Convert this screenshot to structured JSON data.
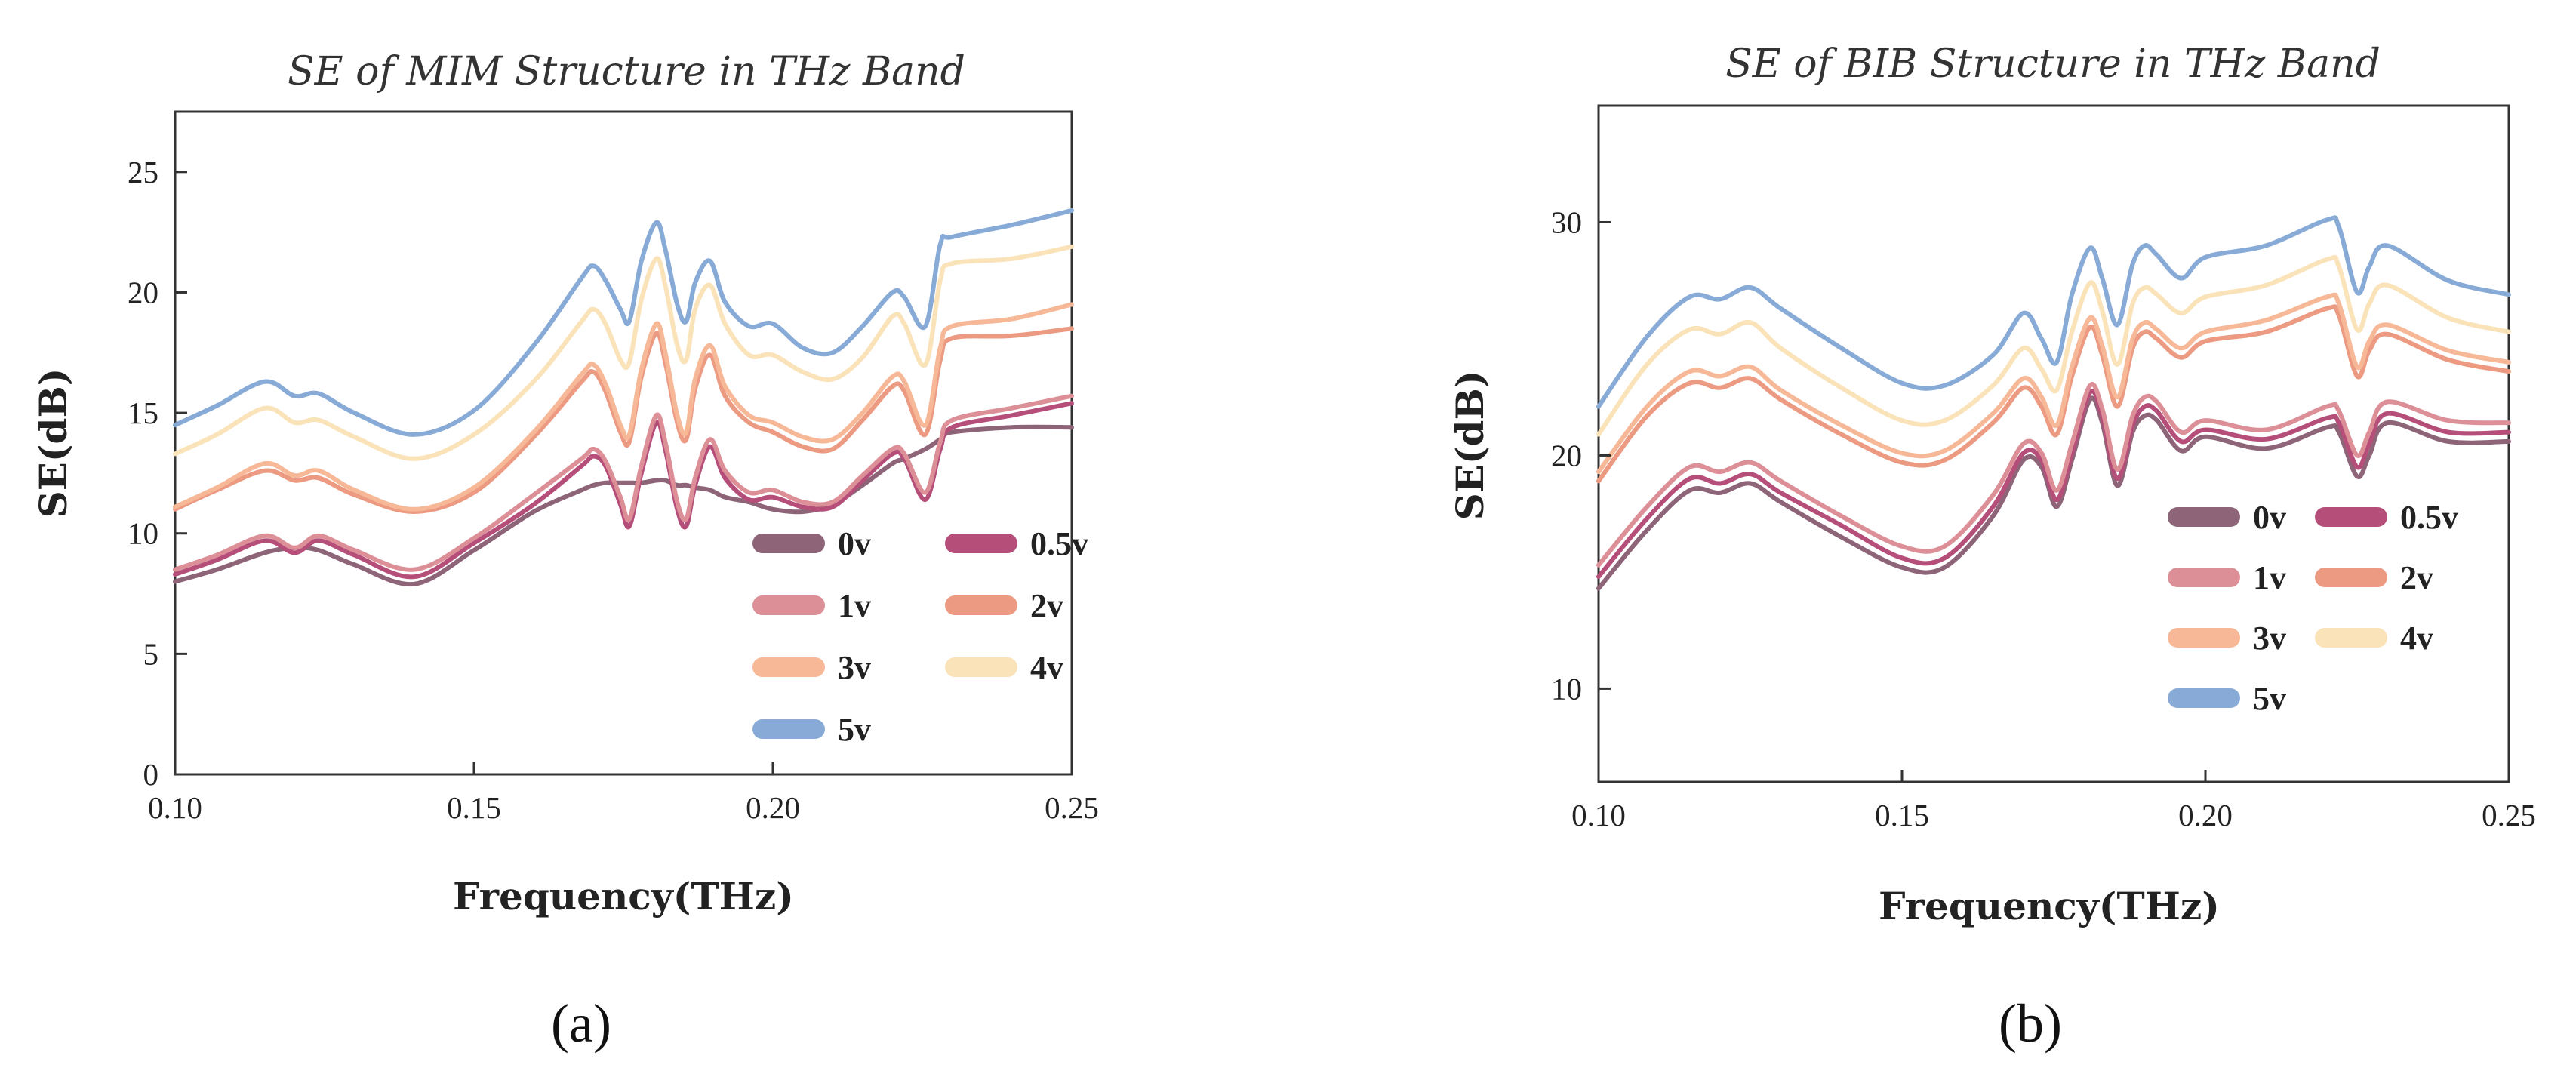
{
  "chart_data": [
    {
      "type": "line",
      "panel_label": "(a)",
      "title": "SE of MIM Structure in THz Band",
      "xlabel": "Frequency(THz)",
      "ylabel": "SE(dB)",
      "xlim": [
        0.1,
        0.25
      ],
      "ylim": [
        0,
        27.5
      ],
      "xticks": [
        0.1,
        0.15,
        0.2,
        0.25
      ],
      "xtick_labels": [
        "0.10",
        "0.15",
        "0.20",
        "0.25"
      ],
      "yticks": [
        0,
        5,
        10,
        15,
        20,
        25
      ],
      "ytick_labels": [
        "0",
        "5",
        "10",
        "15",
        "20",
        "25"
      ],
      "x": [
        0.1,
        0.107,
        0.115,
        0.12,
        0.124,
        0.13,
        0.14,
        0.15,
        0.16,
        0.168,
        0.17,
        0.172,
        0.1745,
        0.176,
        0.178,
        0.1805,
        0.182,
        0.184,
        0.1855,
        0.187,
        0.1895,
        0.192,
        0.196,
        0.2,
        0.205,
        0.21,
        0.215,
        0.22,
        0.222,
        0.2255,
        0.228,
        0.23,
        0.24,
        0.25
      ],
      "series": [
        {
          "name": "0v",
          "color": "#8e6478",
          "values": [
            8.0,
            8.5,
            9.2,
            9.4,
            9.3,
            8.7,
            7.9,
            9.3,
            10.9,
            11.8,
            12.0,
            12.1,
            12.1,
            12.1,
            12.1,
            12.2,
            12.2,
            12.0,
            12.0,
            11.9,
            11.8,
            11.5,
            11.3,
            11.0,
            10.9,
            11.2,
            12.0,
            12.9,
            13.1,
            13.5,
            13.9,
            14.2,
            14.4,
            14.4
          ]
        },
        {
          "name": "0.5v",
          "color": "#b64e7a",
          "values": [
            8.3,
            8.9,
            9.7,
            9.2,
            9.7,
            9.1,
            8.2,
            9.6,
            11.2,
            12.8,
            13.2,
            12.8,
            11.2,
            10.3,
            12.5,
            14.6,
            13.5,
            11.0,
            10.3,
            12.0,
            13.6,
            12.3,
            11.4,
            11.5,
            11.1,
            11.1,
            12.2,
            13.3,
            13.1,
            11.4,
            13.5,
            14.4,
            14.9,
            15.4
          ]
        },
        {
          "name": "1v",
          "color": "#dd8f98",
          "values": [
            8.5,
            9.1,
            9.9,
            9.4,
            9.9,
            9.3,
            8.5,
            9.8,
            11.6,
            13.1,
            13.5,
            13.0,
            11.5,
            10.6,
            12.8,
            14.9,
            13.8,
            11.3,
            10.6,
            12.3,
            13.9,
            12.6,
            11.7,
            11.8,
            11.3,
            11.3,
            12.4,
            13.5,
            13.3,
            11.7,
            13.8,
            14.7,
            15.2,
            15.7
          ]
        },
        {
          "name": "2v",
          "color": "#ec9a82",
          "values": [
            11.0,
            11.8,
            12.6,
            12.2,
            12.3,
            11.6,
            10.9,
            11.7,
            14.0,
            16.3,
            16.7,
            15.9,
            14.2,
            13.8,
            16.5,
            18.3,
            17.1,
            14.6,
            13.9,
            16.0,
            17.4,
            15.7,
            14.6,
            14.2,
            13.6,
            13.5,
            14.7,
            16.1,
            15.9,
            14.1,
            17.2,
            18.1,
            18.2,
            18.5
          ]
        },
        {
          "name": "3v",
          "color": "#f6b897",
          "values": [
            11.1,
            11.9,
            12.9,
            12.4,
            12.6,
            11.8,
            11.0,
            11.9,
            14.2,
            16.6,
            17.0,
            16.2,
            14.5,
            14.1,
            16.8,
            18.7,
            17.5,
            14.9,
            14.2,
            16.4,
            17.8,
            16.1,
            14.9,
            14.6,
            14.0,
            13.9,
            15.0,
            16.5,
            16.3,
            14.5,
            17.7,
            18.6,
            18.9,
            19.5
          ]
        },
        {
          "name": "4v",
          "color": "#fae2b9",
          "values": [
            13.3,
            14.1,
            15.2,
            14.6,
            14.7,
            14.0,
            13.1,
            14.1,
            16.3,
            18.8,
            19.3,
            18.7,
            17.2,
            17.1,
            19.7,
            21.4,
            20.3,
            17.8,
            17.2,
            19.3,
            20.3,
            18.7,
            17.4,
            17.4,
            16.7,
            16.4,
            17.3,
            19.0,
            18.7,
            17.0,
            20.5,
            21.2,
            21.4,
            21.9
          ]
        },
        {
          "name": "5v",
          "color": "#87abd6",
          "values": [
            14.5,
            15.3,
            16.3,
            15.7,
            15.8,
            15.0,
            14.1,
            15.1,
            17.8,
            20.6,
            21.1,
            20.5,
            19.3,
            18.8,
            21.3,
            22.9,
            21.8,
            19.5,
            18.8,
            20.4,
            21.3,
            19.6,
            18.6,
            18.7,
            17.7,
            17.5,
            18.6,
            20.0,
            19.8,
            18.6,
            22.0,
            22.3,
            22.8,
            23.4
          ]
        }
      ],
      "legend": {
        "placement": "lower-right",
        "columns": 2
      }
    },
    {
      "type": "line",
      "panel_label": "(b)",
      "title": "SE of BIB Structure in THz Band",
      "xlabel": "Frequency(THz)",
      "ylabel": "SE(dB)",
      "xlim": [
        0.1,
        0.25
      ],
      "ylim": [
        6,
        35
      ],
      "xticks": [
        0.1,
        0.15,
        0.2,
        0.25
      ],
      "xtick_labels": [
        "0.10",
        "0.15",
        "0.20",
        "0.25"
      ],
      "yticks": [
        10,
        20,
        30
      ],
      "ytick_labels": [
        "10",
        "20",
        "30"
      ],
      "x": [
        0.1,
        0.108,
        0.115,
        0.12,
        0.125,
        0.13,
        0.14,
        0.15,
        0.157,
        0.165,
        0.17,
        0.173,
        0.1755,
        0.178,
        0.181,
        0.183,
        0.1855,
        0.188,
        0.19,
        0.192,
        0.196,
        0.2,
        0.21,
        0.22,
        0.222,
        0.225,
        0.227,
        0.23,
        0.24,
        0.25
      ],
      "series": [
        {
          "name": "0v",
          "color": "#8e6478",
          "values": [
            14.3,
            16.8,
            18.5,
            18.4,
            18.8,
            18.0,
            16.5,
            15.2,
            15.2,
            17.4,
            19.8,
            19.5,
            17.8,
            19.8,
            22.4,
            21.4,
            18.7,
            21.0,
            21.7,
            21.5,
            20.2,
            20.8,
            20.3,
            21.2,
            21.0,
            19.1,
            20.0,
            21.4,
            20.6,
            20.6
          ]
        },
        {
          "name": "0.5v",
          "color": "#b64e7a",
          "values": [
            14.8,
            17.3,
            19.0,
            18.8,
            19.2,
            18.4,
            17.0,
            15.6,
            15.6,
            17.8,
            20.1,
            19.8,
            18.1,
            20.1,
            22.7,
            21.7,
            19.0,
            21.3,
            22.1,
            21.9,
            20.6,
            21.1,
            20.7,
            21.6,
            21.4,
            19.5,
            20.5,
            21.8,
            21.0,
            21.0
          ]
        },
        {
          "name": "1v",
          "color": "#dd8f98",
          "values": [
            15.3,
            17.8,
            19.5,
            19.3,
            19.7,
            18.9,
            17.4,
            16.1,
            16.1,
            18.3,
            20.5,
            20.1,
            18.5,
            20.5,
            23.0,
            22.0,
            19.4,
            21.7,
            22.5,
            22.3,
            21.0,
            21.5,
            21.1,
            22.1,
            21.9,
            20.0,
            21.0,
            22.3,
            21.5,
            21.4
          ]
        },
        {
          "name": "2v",
          "color": "#ec9a82",
          "values": [
            18.9,
            21.7,
            23.1,
            22.9,
            23.3,
            22.4,
            20.9,
            19.7,
            19.8,
            21.4,
            22.9,
            22.1,
            20.9,
            23.4,
            25.5,
            24.3,
            22.1,
            24.6,
            25.3,
            25.0,
            24.2,
            24.9,
            25.3,
            26.3,
            26.0,
            23.4,
            24.5,
            25.2,
            24.1,
            23.6
          ]
        },
        {
          "name": "3v",
          "color": "#f6b897",
          "values": [
            19.3,
            22.1,
            23.6,
            23.4,
            23.8,
            22.8,
            21.3,
            20.1,
            20.2,
            21.8,
            23.3,
            22.5,
            21.3,
            23.8,
            25.9,
            24.7,
            22.5,
            25.0,
            25.7,
            25.4,
            24.6,
            25.3,
            25.8,
            26.8,
            26.5,
            23.8,
            24.9,
            25.6,
            24.5,
            24.0
          ]
        },
        {
          "name": "4v",
          "color": "#fae2b9",
          "values": [
            20.9,
            23.9,
            25.4,
            25.2,
            25.7,
            24.6,
            22.9,
            21.5,
            21.5,
            23.0,
            24.6,
            23.7,
            22.8,
            25.3,
            27.4,
            26.2,
            23.9,
            26.5,
            27.2,
            26.9,
            26.1,
            26.8,
            27.3,
            28.4,
            28.1,
            25.4,
            26.5,
            27.3,
            25.9,
            25.3
          ]
        },
        {
          "name": "5v",
          "color": "#87abd6",
          "values": [
            22.1,
            25.1,
            26.8,
            26.7,
            27.2,
            26.3,
            24.6,
            23.1,
            23.0,
            24.3,
            26.1,
            25.0,
            24.0,
            26.9,
            28.9,
            27.6,
            25.6,
            28.2,
            29.0,
            28.6,
            27.6,
            28.5,
            29.0,
            30.1,
            29.8,
            27.0,
            28.1,
            29.0,
            27.5,
            26.9
          ]
        }
      ],
      "legend": {
        "placement": "lower-right",
        "columns": 2
      }
    }
  ]
}
